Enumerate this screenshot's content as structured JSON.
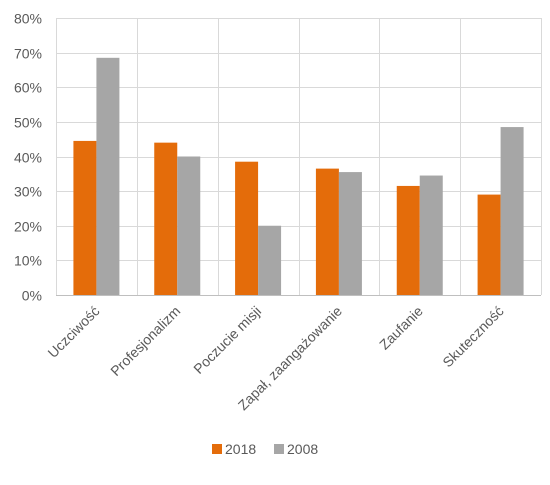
{
  "chart_data": {
    "type": "bar",
    "title": "",
    "xlabel": "",
    "ylabel": "",
    "ylim": [
      0,
      80
    ],
    "y_ticks": [
      "0%",
      "10%",
      "20%",
      "30%",
      "40%",
      "50%",
      "60%",
      "70%",
      "80%"
    ],
    "y_tick_values": [
      0,
      10,
      20,
      30,
      40,
      50,
      60,
      70,
      80
    ],
    "grid": true,
    "legend_position": "bottom",
    "categories": [
      "Uczciwość",
      "Profesjonalizm",
      "Poczucie misji",
      "Zapał, zaangażowanie",
      "Zaufanie",
      "Skuteczność"
    ],
    "series": [
      {
        "name": "2018",
        "color": "#E46C0A",
        "values": [
          44.5,
          44,
          38.5,
          36.5,
          31.5,
          29
        ]
      },
      {
        "name": "2008",
        "color": "#A6A6A6",
        "values": [
          68.5,
          40,
          20,
          35.5,
          34.5,
          48.5
        ]
      }
    ]
  }
}
